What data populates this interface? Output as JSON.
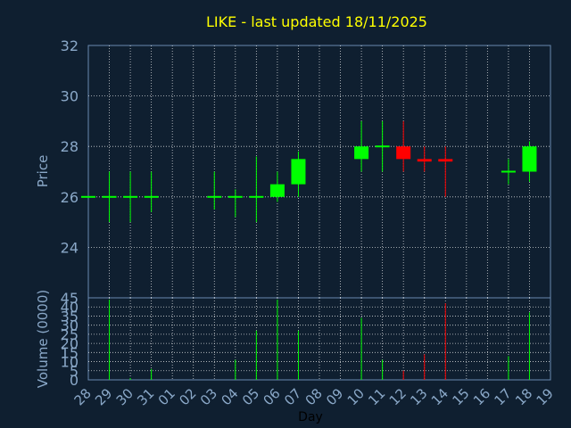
{
  "chart_data": [
    {
      "type": "candlestick",
      "title": "LIKE - last updated 18/11/2025",
      "ylabel": "Price",
      "ylim": [
        22,
        32
      ],
      "yticks": [
        24,
        26,
        28,
        30,
        32
      ],
      "grid": true,
      "x_categories": [
        "28",
        "29",
        "30",
        "31",
        "01",
        "02",
        "03",
        "04",
        "05",
        "06",
        "07",
        "08",
        "09",
        "10",
        "11",
        "12",
        "13",
        "14",
        "15",
        "16",
        "17",
        "18",
        "19"
      ],
      "candles": [
        {
          "x": "28",
          "open": 26.0,
          "high": 26.0,
          "low": 26.0,
          "close": 26.0
        },
        {
          "x": "29",
          "open": 26.0,
          "high": 27.0,
          "low": 25.0,
          "close": 26.0
        },
        {
          "x": "30",
          "open": 26.0,
          "high": 27.0,
          "low": 25.0,
          "close": 26.0
        },
        {
          "x": "31",
          "open": 26.0,
          "high": 27.0,
          "low": 25.4,
          "close": 26.0
        },
        {
          "x": "03",
          "open": 26.0,
          "high": 27.0,
          "low": 25.5,
          "close": 26.0
        },
        {
          "x": "04",
          "open": 26.0,
          "high": 26.3,
          "low": 25.2,
          "close": 26.0
        },
        {
          "x": "05",
          "open": 26.0,
          "high": 27.6,
          "low": 25.0,
          "close": 26.0
        },
        {
          "x": "06",
          "open": 26.0,
          "high": 27.0,
          "low": 25.8,
          "close": 26.5
        },
        {
          "x": "07",
          "open": 26.5,
          "high": 27.8,
          "low": 26.0,
          "close": 27.5
        },
        {
          "x": "10",
          "open": 27.5,
          "high": 29.0,
          "low": 27.0,
          "close": 28.0
        },
        {
          "x": "11",
          "open": 28.0,
          "high": 29.0,
          "low": 27.0,
          "close": 28.0
        },
        {
          "x": "12",
          "open": 28.0,
          "high": 29.0,
          "low": 27.0,
          "close": 27.5
        },
        {
          "x": "13",
          "open": 27.5,
          "high": 28.0,
          "low": 27.0,
          "close": 27.4
        },
        {
          "x": "14",
          "open": 27.5,
          "high": 28.0,
          "low": 26.0,
          "close": 27.4
        },
        {
          "x": "17",
          "open": 27.0,
          "high": 27.5,
          "low": 26.5,
          "close": 27.0
        },
        {
          "x": "18",
          "open": 27.0,
          "high": 28.2,
          "low": 26.6,
          "close": 28.0
        }
      ],
      "colors": {
        "up": "#00ff00",
        "down": "#ff0000",
        "text": "#ffff00",
        "axis": "#6a8ab0",
        "label": "#8aa8c8",
        "grid": "#ffffff"
      }
    },
    {
      "type": "bar",
      "ylabel": "Volume (0000)",
      "xlabel": "Day",
      "ylim": [
        0,
        45
      ],
      "yticks": [
        0,
        5,
        10,
        15,
        20,
        25,
        30,
        35,
        40,
        45
      ],
      "categories": [
        "28",
        "29",
        "30",
        "31",
        "01",
        "02",
        "03",
        "04",
        "05",
        "06",
        "07",
        "08",
        "09",
        "10",
        "11",
        "12",
        "13",
        "14",
        "15",
        "16",
        "17",
        "18",
        "19"
      ],
      "values": [
        0,
        44,
        1,
        6,
        0,
        0,
        0,
        11,
        27,
        44,
        27,
        0,
        0,
        34,
        11,
        5,
        14,
        42,
        0,
        0,
        13,
        37,
        0
      ],
      "bar_colors": [
        "#00ff00",
        "#00ff00",
        "#00ff00",
        "#00ff00",
        "#00ff00",
        "#00ff00",
        "#00ff00",
        "#00ff00",
        "#00ff00",
        "#00ff00",
        "#00ff00",
        "#00ff00",
        "#00ff00",
        "#00ff00",
        "#00ff00",
        "#ff0000",
        "#ff0000",
        "#ff0000",
        "#00ff00",
        "#00ff00",
        "#00ff00",
        "#00ff00",
        "#00ff00"
      ]
    }
  ]
}
